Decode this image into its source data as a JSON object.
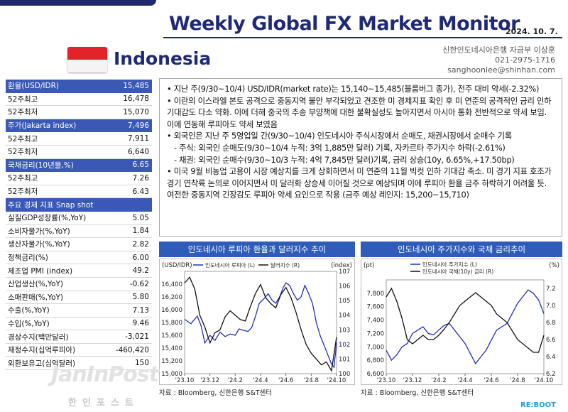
{
  "header": {
    "title": "Weekly Global FX Market Monitor",
    "date": "2024. 10. 7.",
    "country": "Indonesia",
    "author": [
      "신한인도네시아은행 자금부 이상훈",
      "021-2975-1716",
      "sanghoonlee@shinhan.com"
    ]
  },
  "indicators": [
    {
      "label": "환율(USD/IDR)",
      "value": "15,485",
      "head": true
    },
    {
      "label": "52주최고",
      "value": "16,478"
    },
    {
      "label": "52주최저",
      "value": "15,070"
    },
    {
      "label": "주가(Jakarta index)",
      "value": "7,496",
      "head": true
    },
    {
      "label": "52주최고",
      "value": "7,911"
    },
    {
      "label": "52주최저",
      "value": "6,640"
    },
    {
      "label": "국채금리(10년물,%)",
      "value": "6.65",
      "head": true
    },
    {
      "label": "52주최고",
      "value": "7.26"
    },
    {
      "label": "52주최저",
      "value": "6.43"
    },
    {
      "label": "주요 경제 지표 Snap shot",
      "value": "",
      "head": true
    },
    {
      "label": "실질GDP성장률(%,YoY)",
      "value": "5.05"
    },
    {
      "label": "소비자물가(%,YoY)",
      "value": "1.84"
    },
    {
      "label": "생산자물가(%,YoY)",
      "value": "2.82"
    },
    {
      "label": "정책금리(%)",
      "value": "6.00"
    },
    {
      "label": "제조업 PMI (index)",
      "value": "49.2"
    },
    {
      "label": "산업생산(%,YoY)",
      "value": "-0.62"
    },
    {
      "label": "소매판매(%,YoY)",
      "value": "5.80"
    },
    {
      "label": "수출(%,YoY)",
      "value": "7.13"
    },
    {
      "label": "수입(%,YoY)",
      "value": "9.46"
    },
    {
      "label": "경상수지(백만달러)",
      "value": "-3,021"
    },
    {
      "label": "재정수지(십억루피아)",
      "value": "-460,420"
    },
    {
      "label": "외환보유고(십억달러)",
      "value": "150"
    }
  ],
  "bullets": [
    {
      "text": "• 지난 주(9/30~10/4) USD/IDR(market rate)는 15,140~15,485(블룸버그 종가), 전주 대비 약세(-2.32%)",
      "indent": false
    },
    {
      "text": "• 이란의 이스라엘 본토 공격으로 중동지역 불안 부각되었고 견조한 미 경제지표 확인 후 미 연준의 공격적인 금리 인하 기대감도 다소 약화. 이에 더해 중국의 추송 부양책에 대한 불확실성도 높아지면서 아시아 통화 전반적으로 약세 보임. 이에 연동해 루피아도 약세 보였음",
      "indent": false
    },
    {
      "text": "• 외국인은 지난 주 5영업일 간(9/30~10/4) 인도네시아 주식시장에서 순매도, 채권시장에서 순매수 기록",
      "indent": false
    },
    {
      "text": "- 주식: 외국인 순매도(9/30~10/4 누적: 3억 1,885만 달러) 기록, 자카르타 주가지수 하락(-2.61%)",
      "indent": true
    },
    {
      "text": "- 채권: 외국인 순매수(9/30~10/3 누적: 4억 7,845만 달러)기록, 금리 상승(10y, 6.65%,+17.50bp)",
      "indent": true
    },
    {
      "text": "• 미국 9월 비농업 고용이 시장 예상치를 크게 상회하면서 미 연준의 11월 빅컷 인하 기대감 축소. 미 경기 지표 호조가 경기 연착륙 논의로 이어지면서 미 달러화 상승세 이어질 것으로 예상되며 이에 루피아 환율 금주 하락하기 어려울 듯. 여전한 중동지역 긴장감도 루피아 약세 요인으로 작용 (금주 예상 레인지: 15,200~15,710)",
      "indent": false
    }
  ],
  "chart_data": [
    {
      "type": "line",
      "title": "인도네시아 루피아 환율과 달러지수 추이",
      "ylabel": "(USD/IDR)",
      "y2label": "(index)",
      "xticks": [
        "'23.10",
        "'23.12",
        "'24.2",
        "'24.4",
        "'24.6",
        "'24.8",
        "'24.10"
      ],
      "ylim": [
        15000,
        16600
      ],
      "yticks": [
        15000,
        15200,
        15400,
        15600,
        15800,
        16000,
        16200,
        16400
      ],
      "y2lim": [
        100,
        107
      ],
      "y2ticks": [
        100,
        101,
        102,
        103,
        104,
        105,
        106,
        107
      ],
      "series": [
        {
          "name": "인도네시아 루피아 (L)",
          "axis": "left",
          "color": "#1f2fbf",
          "x": [
            0,
            0.5,
            1,
            1.3,
            1.6,
            2,
            2.4,
            2.8,
            3.2,
            3.6,
            4,
            4.3,
            4.6,
            5,
            5.3,
            5.6,
            5.9,
            6.3,
            6.6,
            6.9,
            7.2,
            7.5,
            7.8,
            8,
            8.3,
            8.6,
            8.9,
            9.2,
            9.5,
            9.8,
            10.1,
            10.4,
            10.7,
            11,
            11.3,
            11.6,
            11.8,
            12.0
          ],
          "y": [
            15850,
            15780,
            15900,
            15750,
            15480,
            15600,
            15520,
            15650,
            15580,
            15620,
            15600,
            15700,
            15680,
            15660,
            15720,
            15900,
            16100,
            16180,
            16250,
            16150,
            16100,
            16200,
            16350,
            16420,
            16380,
            16250,
            16150,
            16200,
            16380,
            16250,
            16100,
            15800,
            15600,
            15450,
            15300,
            15150,
            15100,
            15485
          ]
        },
        {
          "name": "달러지수 (R)",
          "axis": "right",
          "color": "#111111",
          "x": [
            0,
            0.4,
            0.8,
            1.2,
            1.6,
            2,
            2.4,
            2.8,
            3.2,
            3.6,
            4,
            4.4,
            4.8,
            5.2,
            5.6,
            6,
            6.4,
            6.8,
            7.2,
            7.6,
            8,
            8.4,
            8.8,
            9.2,
            9.6,
            10,
            10.4,
            10.8,
            11.2,
            11.6,
            12.0
          ],
          "y": [
            106.2,
            106.6,
            105.8,
            104.0,
            103.2,
            102.1,
            102.8,
            103.0,
            103.9,
            104.3,
            104.0,
            103.7,
            103.6,
            104.6,
            105.5,
            106.1,
            105.2,
            104.8,
            104.5,
            105.4,
            105.9,
            105.2,
            104.2,
            103.0,
            102.0,
            101.4,
            101.0,
            100.6,
            100.8,
            100.2,
            102.5
          ]
        }
      ],
      "source": "자료 : Bloomberg, 신한은행 S&T센터"
    },
    {
      "type": "line",
      "title": "인도네시아 주가지수와 국채 금리추이",
      "ylabel": "(pt)",
      "y2label": "(%)",
      "xticks": [
        "'23.10",
        "'23.12",
        "'24.2",
        "'24.4",
        "'24.6",
        "'24.8",
        "'24.10"
      ],
      "ylim": [
        6600,
        8000
      ],
      "yticks": [
        6600,
        6800,
        7000,
        7200,
        7400,
        7600,
        7800
      ],
      "y2lim": [
        6.2,
        7.3
      ],
      "y2ticks": [
        6.2,
        6.4,
        6.6,
        6.8,
        7.0,
        7.2
      ],
      "series": [
        {
          "name": "인도네시아 주가지수 (L)",
          "axis": "left",
          "color": "#1f2fbf",
          "x": [
            0,
            0.4,
            0.8,
            1.2,
            1.6,
            2,
            2.4,
            2.8,
            3.2,
            3.6,
            4,
            4.4,
            4.8,
            5.2,
            5.6,
            6,
            6.4,
            6.8,
            7.2,
            7.6,
            8,
            8.4,
            8.8,
            9.2,
            9.6,
            10,
            10.4,
            10.8,
            11.2,
            11.6,
            12.0
          ],
          "y": [
            6950,
            6800,
            6880,
            7000,
            7050,
            7200,
            7250,
            7300,
            7200,
            7180,
            7250,
            7320,
            7350,
            7250,
            7150,
            7050,
            6900,
            6750,
            6850,
            6950,
            7100,
            7250,
            7300,
            7350,
            7500,
            7650,
            7750,
            7850,
            7800,
            7700,
            7496
          ]
        },
        {
          "name": "인도네시아 국채(10y) 금리 (R)",
          "axis": "right",
          "color": "#111111",
          "x": [
            0,
            0.4,
            0.8,
            1.2,
            1.6,
            2,
            2.4,
            2.8,
            3.2,
            3.6,
            4,
            4.4,
            4.8,
            5.2,
            5.6,
            6,
            6.4,
            6.8,
            7.2,
            7.6,
            8,
            8.4,
            8.8,
            9.2,
            9.6,
            10,
            10.4,
            10.8,
            11.2,
            11.6,
            12.0
          ],
          "y": [
            7.1,
            7.2,
            7.05,
            6.85,
            6.6,
            6.55,
            6.6,
            6.65,
            6.6,
            6.6,
            6.65,
            6.72,
            6.8,
            6.9,
            7.0,
            7.05,
            7.1,
            7.15,
            7.1,
            7.05,
            7.0,
            6.9,
            6.85,
            6.8,
            6.7,
            6.6,
            6.55,
            6.5,
            6.45,
            6.45,
            6.65
          ]
        }
      ],
      "source": "자료 : Bloomberg, 신한은행 S&T센터"
    }
  ],
  "logos": {
    "left": "JanInPost",
    "left_kr": "한인포스트",
    "right": "RE:BOOT"
  }
}
